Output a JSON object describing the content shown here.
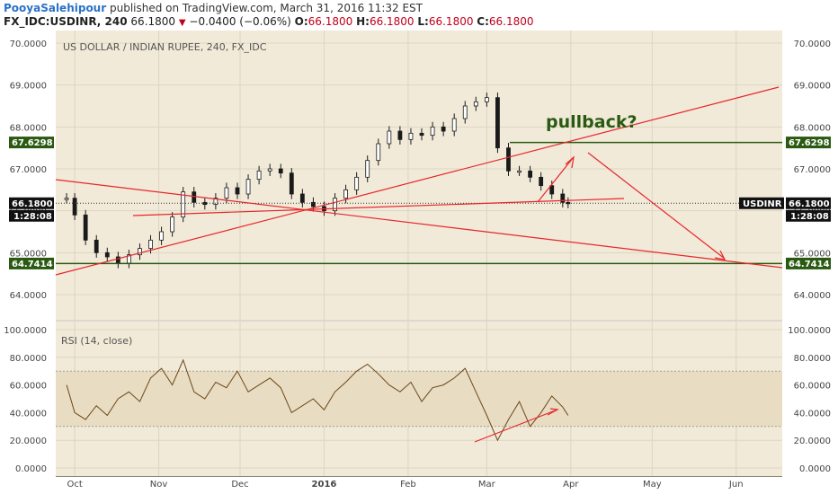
{
  "header": {
    "author": "PooyaSalehipour",
    "published": "published on TradingView.com, March 31, 2016 11:32 EST",
    "symbol": "FX_IDC:USDINR, 240",
    "last": "66.1800",
    "change": "−0.0400 (−0.06%)",
    "o_label": "O:",
    "o_value": "66.1800",
    "h_label": "H:",
    "h_value": "66.1800",
    "l_label": "L:",
    "l_value": "66.1800",
    "c_label": "C:",
    "c_value": "66.1800"
  },
  "colors": {
    "background": "#f1ead8",
    "candle": "#1a1a1a",
    "trendline": "#e8262d",
    "level": "#2a5a12",
    "rsi_line": "#6b4718",
    "rsi_band": "#e8dcc2"
  },
  "chart_data": [
    {
      "type": "line",
      "title": "US DOLLAR / INDIAN RUPEE, 240, FX_IDC",
      "ylim": [
        63.6,
        70.0
      ],
      "y_ticks": [
        "64.0000",
        "65.0000",
        "66.0000",
        "67.0000",
        "68.0000",
        "69.0000",
        "70.0000"
      ],
      "x_ticks": [
        "Oct",
        "Nov",
        "Dec",
        "2016",
        "Feb",
        "Mar",
        "Apr",
        "May",
        "Jun"
      ],
      "series": [
        {
          "x": [
            "2015-09-28",
            "2015-10-01",
            "2015-10-05",
            "2015-10-09",
            "2015-10-13",
            "2015-10-17",
            "2015-10-21",
            "2015-10-25",
            "2015-10-29",
            "2015-11-02",
            "2015-11-06",
            "2015-11-10",
            "2015-11-14",
            "2015-11-18",
            "2015-11-22",
            "2015-11-26",
            "2015-11-30",
            "2015-12-04",
            "2015-12-08",
            "2015-12-12",
            "2015-12-16",
            "2015-12-20",
            "2015-12-24",
            "2015-12-28",
            "2016-01-01",
            "2016-01-05",
            "2016-01-09",
            "2016-01-13",
            "2016-01-17",
            "2016-01-21",
            "2016-01-25",
            "2016-01-29",
            "2016-02-02",
            "2016-02-06",
            "2016-02-10",
            "2016-02-14",
            "2016-02-18",
            "2016-02-22",
            "2016-02-26",
            "2016-03-01",
            "2016-03-05",
            "2016-03-09",
            "2016-03-13",
            "2016-03-17",
            "2016-03-21",
            "2016-03-25",
            "2016-03-29",
            "2016-03-31"
          ],
          "values": [
            66.3,
            65.9,
            65.3,
            65.0,
            64.9,
            64.75,
            64.95,
            65.1,
            65.3,
            65.5,
            65.85,
            66.45,
            66.2,
            66.15,
            66.3,
            66.55,
            66.4,
            66.75,
            66.95,
            67.0,
            66.9,
            66.4,
            66.2,
            66.1,
            66.0,
            66.3,
            66.5,
            66.8,
            67.2,
            67.6,
            67.9,
            67.7,
            67.85,
            67.8,
            68.0,
            67.9,
            68.2,
            68.5,
            68.6,
            68.7,
            67.5,
            66.95,
            66.95,
            66.8,
            66.6,
            66.4,
            66.2,
            66.18
          ]
        }
      ],
      "levels": [
        "67.6298",
        "64.7414"
      ],
      "last_label": "USDINR",
      "last_value": "66.1800",
      "countdown": "1:28:08",
      "annotation": "pullback?"
    },
    {
      "type": "line",
      "title": "RSI (14, close)",
      "ylim": [
        0,
        100
      ],
      "y_ticks": [
        "0.0000",
        "20.0000",
        "40.0000",
        "60.0000",
        "80.0000",
        "100.0000"
      ],
      "band": [
        30,
        70
      ],
      "series": [
        {
          "x": [
            "2015-09-28",
            "2015-10-01",
            "2015-10-05",
            "2015-10-09",
            "2015-10-13",
            "2015-10-17",
            "2015-10-21",
            "2015-10-25",
            "2015-10-29",
            "2015-11-02",
            "2015-11-06",
            "2015-11-10",
            "2015-11-14",
            "2015-11-18",
            "2015-11-22",
            "2015-11-26",
            "2015-11-30",
            "2015-12-04",
            "2015-12-08",
            "2015-12-12",
            "2015-12-16",
            "2015-12-20",
            "2015-12-24",
            "2015-12-28",
            "2016-01-01",
            "2016-01-05",
            "2016-01-09",
            "2016-01-13",
            "2016-01-17",
            "2016-01-21",
            "2016-01-25",
            "2016-01-29",
            "2016-02-02",
            "2016-02-06",
            "2016-02-10",
            "2016-02-14",
            "2016-02-18",
            "2016-02-22",
            "2016-02-26",
            "2016-03-01",
            "2016-03-05",
            "2016-03-09",
            "2016-03-13",
            "2016-03-17",
            "2016-03-21",
            "2016-03-25",
            "2016-03-29",
            "2016-03-31"
          ],
          "values": [
            60,
            40,
            35,
            45,
            38,
            50,
            55,
            48,
            65,
            72,
            60,
            78,
            55,
            50,
            62,
            58,
            70,
            55,
            60,
            65,
            58,
            40,
            45,
            50,
            42,
            55,
            62,
            70,
            75,
            68,
            60,
            55,
            62,
            48,
            58,
            60,
            65,
            72,
            55,
            38,
            20,
            35,
            48,
            30,
            40,
            52,
            44,
            38
          ]
        }
      ]
    }
  ]
}
